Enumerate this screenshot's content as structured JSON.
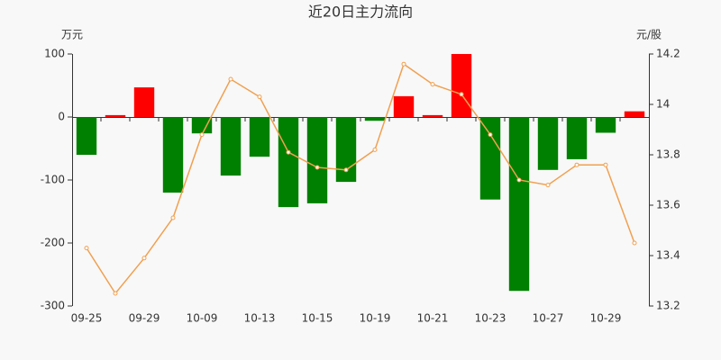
{
  "chart_data": {
    "type": "bar-line",
    "title": "近20日主力流向",
    "y_label": "万元",
    "y2_label": "元/股",
    "categories": [
      "09-25",
      null,
      "09-29",
      null,
      "10-09",
      null,
      "10-13",
      null,
      "10-15",
      null,
      "10-19",
      null,
      "10-21",
      null,
      "10-23",
      null,
      "10-27",
      null,
      "10-29",
      null
    ],
    "values": [
      -60,
      3,
      47,
      -120,
      -26,
      -93,
      -63,
      -143,
      -137,
      -103,
      -6,
      33,
      3,
      100,
      -131,
      -276,
      -84,
      -67,
      -25,
      9
    ],
    "color_positive": "#ff0000",
    "color_negative": "#008000",
    "line_values": [
      13.43,
      13.25,
      13.39,
      13.55,
      13.88,
      14.1,
      14.03,
      13.81,
      13.75,
      13.74,
      13.82,
      14.16,
      14.08,
      14.04,
      13.88,
      13.7,
      13.68,
      13.76,
      13.76,
      13.45
    ],
    "line_color": "#f0a050",
    "line_axis": "y2",
    "ylim": [
      -300,
      100
    ],
    "yticks": [
      -300,
      -200,
      -100,
      0,
      100
    ],
    "y2lim": [
      13.2,
      14.2
    ],
    "y2ticks": [
      13.2,
      13.4,
      13.6,
      13.8,
      14,
      14.2
    ]
  }
}
